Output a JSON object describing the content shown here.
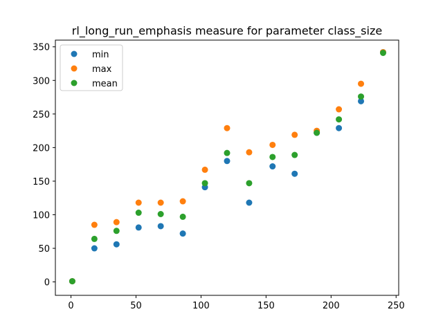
{
  "chart_data": {
    "type": "scatter",
    "title": "rl_long_run_emphasis measure for parameter class_size",
    "xlabel": "",
    "ylabel": "",
    "xlim": [
      -12,
      252
    ],
    "ylim": [
      -20,
      360
    ],
    "x_ticks": [
      0,
      50,
      100,
      150,
      200,
      250
    ],
    "y_ticks": [
      0,
      50,
      100,
      150,
      200,
      250,
      300,
      350
    ],
    "grid": false,
    "legend_position": "top-left",
    "x": [
      1,
      18,
      35,
      52,
      69,
      86,
      103,
      120,
      137,
      155,
      172,
      189,
      206,
      223,
      240
    ],
    "series": [
      {
        "name": "min",
        "color": "#1f77b4",
        "values": [
          1,
          50,
          56,
          81,
          83,
          72,
          141,
          180,
          118,
          172,
          161,
          222,
          229,
          269,
          342
        ]
      },
      {
        "name": "max",
        "color": "#ff7f0e",
        "values": [
          1,
          85,
          89,
          118,
          118,
          120,
          167,
          229,
          193,
          204,
          219,
          225,
          257,
          295,
          342
        ]
      },
      {
        "name": "mean",
        "color": "#2ca02c",
        "values": [
          1,
          64,
          76,
          103,
          101,
          97,
          147,
          192,
          147,
          186,
          189,
          222,
          242,
          276,
          341
        ]
      }
    ]
  }
}
